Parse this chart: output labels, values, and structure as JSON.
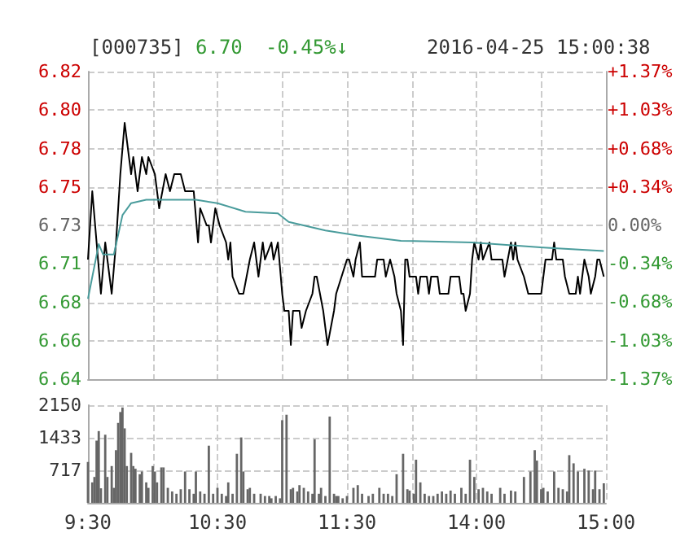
{
  "chart_data": [
    {
      "type": "line",
      "title": "[000735]",
      "annotations": [
        "6.70",
        "-0.45%↓",
        "2016-04-25 15:00:38"
      ],
      "categories": [
        null,
        null,
        null,
        null,
        null,
        null,
        null,
        null,
        null,
        null,
        null,
        null,
        null,
        null,
        null,
        null,
        null,
        null,
        null,
        null,
        null,
        null,
        null,
        null,
        null,
        null,
        null,
        null,
        null,
        null,
        null,
        null,
        null,
        null,
        null,
        null,
        null,
        null,
        null,
        null,
        null,
        null,
        null,
        null,
        null,
        null,
        null,
        null,
        null,
        null,
        null,
        null,
        null,
        null,
        null,
        null,
        null,
        null,
        null,
        null,
        null,
        null,
        null,
        null,
        null,
        null,
        null,
        null,
        null,
        null,
        null,
        null,
        null,
        null,
        null,
        null,
        null,
        null,
        null,
        null,
        null,
        null,
        null,
        null,
        null,
        null,
        null,
        null,
        null,
        null,
        null,
        null,
        null,
        null,
        null,
        null,
        null,
        null,
        null,
        null,
        null,
        null,
        null,
        null,
        null,
        null,
        null,
        null,
        null,
        null,
        null,
        null,
        null,
        null,
        null,
        null,
        null,
        null,
        null,
        null,
        null,
        null,
        null,
        null,
        null,
        null,
        null,
        null,
        null,
        null,
        null,
        null,
        null,
        null,
        null,
        null,
        null,
        null,
        null,
        null,
        null,
        null,
        null,
        null,
        null,
        null,
        null,
        null,
        null,
        null,
        null,
        null,
        null,
        null,
        null,
        null,
        null,
        null,
        null,
        null,
        null,
        null,
        null,
        null,
        null,
        null,
        null,
        null,
        null,
        null,
        null,
        null,
        null,
        null,
        null,
        null,
        null,
        null,
        null,
        null,
        null,
        null,
        null,
        null,
        null,
        null,
        null,
        null,
        null,
        null,
        null,
        null,
        null,
        null,
        null,
        null,
        null,
        null,
        null,
        null,
        null,
        null,
        null,
        null,
        null,
        null,
        null,
        null,
        null,
        null,
        null,
        null,
        null,
        null,
        null,
        null,
        null,
        null,
        null,
        null,
        null,
        null,
        null,
        null,
        null,
        null,
        null,
        null,
        null,
        null,
        null,
        null,
        null,
        null,
        null,
        null,
        null,
        null,
        null,
        null,
        null
      ],
      "ylim": [
        6.64,
        6.82
      ],
      "yticks": [
        {
          "value": 6.64,
          "label": "6.64"
        },
        {
          "value": 6.6625,
          "label": "6.66"
        },
        {
          "value": 6.685,
          "label": "6.68"
        },
        {
          "value": 6.7075,
          "label": "6.71"
        },
        {
          "value": 6.73,
          "label": "6.73"
        },
        {
          "value": 6.7525,
          "label": "6.75"
        },
        {
          "value": 6.775,
          "label": "6.78"
        },
        {
          "value": 6.7975,
          "label": "6.80"
        },
        {
          "value": 6.82,
          "label": "6.82"
        }
      ],
      "y2lim": [
        -1.37,
        1.37
      ],
      "y2ticks": [
        {
          "value": -1.37,
          "label": "-1.37%"
        },
        {
          "value": -1.03,
          "label": "-1.03%"
        },
        {
          "value": -0.68,
          "label": "-0.68%"
        },
        {
          "value": -0.34,
          "label": "-0.34%"
        },
        {
          "value": 0,
          "label": "0.00%"
        },
        {
          "value": 0.34,
          "label": "+0.34%"
        },
        {
          "value": 0.68,
          "label": "+0.68%"
        },
        {
          "value": 1.03,
          "label": "+1.03%"
        },
        {
          "value": 1.37,
          "label": "+1.37%"
        }
      ],
      "tick_labels": "y",
      "grid": true,
      "line_style": "solid",
      "series": [
        {
          "color": "#000000",
          "values": [
            6.71,
            null,
            6.75,
            null,
            null,
            null,
            6.69,
            null,
            6.72,
            null,
            null,
            6.69,
            null,
            6.72,
            null,
            6.76,
            null,
            6.79,
            null,
            null,
            6.76,
            6.77,
            null,
            6.75,
            null,
            6.77,
            null,
            6.76,
            6.77,
            null,
            null,
            6.76,
            null,
            6.74,
            null,
            null,
            6.76,
            null,
            6.75,
            null,
            6.76,
            null,
            null,
            6.76,
            null,
            6.75,
            null,
            null,
            null,
            6.75,
            null,
            6.72,
            6.74,
            null,
            null,
            6.73,
            6.73,
            6.72,
            null,
            6.74,
            null,
            6.73,
            null,
            null,
            6.72,
            6.71,
            6.72,
            6.7,
            null,
            null,
            6.69,
            null,
            6.69,
            null,
            null,
            6.71,
            null,
            6.72,
            null,
            6.7,
            null,
            6.72,
            6.71,
            null,
            null,
            6.72,
            6.71,
            null,
            6.72,
            null,
            6.69,
            6.68,
            null,
            6.68,
            6.66,
            6.68,
            null,
            null,
            6.68,
            6.67,
            null,
            6.68,
            null,
            null,
            6.69,
            6.7,
            6.7,
            null,
            null,
            6.68,
            null,
            6.66,
            null,
            null,
            6.68,
            6.69,
            null,
            null,
            null,
            null,
            6.71,
            6.71,
            null,
            6.7,
            6.71,
            null,
            6.72,
            6.7,
            null,
            null,
            null,
            null,
            null,
            6.7,
            6.71,
            6.71,
            null,
            6.71,
            6.7,
            null,
            6.71,
            null,
            6.7,
            6.69,
            null,
            6.68,
            6.66,
            6.71,
            6.71,
            6.7,
            null,
            null,
            6.7,
            6.69,
            6.7,
            null,
            null,
            6.7,
            6.69,
            6.7,
            null,
            null,
            6.7,
            6.69,
            null,
            null,
            null,
            6.69,
            6.7,
            null,
            null,
            null,
            6.7,
            6.69,
            6.69,
            6.68,
            null,
            6.69,
            6.71,
            6.72,
            null,
            6.71,
            6.72,
            6.71,
            null,
            null,
            6.72,
            6.71,
            null,
            6.71,
            null,
            null,
            6.71,
            6.7,
            null,
            null,
            6.72,
            6.71,
            6.72,
            6.71,
            null,
            null,
            6.7,
            null,
            6.69,
            null,
            null,
            null,
            null,
            null,
            6.69,
            6.7,
            6.71,
            null,
            null,
            6.71,
            6.72,
            6.71,
            null,
            null,
            6.71,
            6.7,
            null,
            6.69,
            null,
            null,
            6.69,
            6.7,
            6.69,
            null,
            6.71,
            null,
            6.7,
            6.69,
            null,
            6.7,
            6.71,
            6.71,
            null,
            6.7,
            null
          ]
        },
        {
          "color": "#4a9c9c",
          "values": [
            6.687,
            null,
            null,
            null,
            null,
            6.719,
            null,
            6.713,
            null,
            null,
            null,
            null,
            6.713,
            null,
            null,
            null,
            6.736,
            null,
            null,
            null,
            6.743,
            null,
            null,
            null,
            null,
            null,
            null,
            6.745,
            null,
            null,
            null,
            null,
            null,
            null,
            null,
            null,
            null,
            null,
            null,
            null,
            null,
            null,
            null,
            null,
            null,
            null,
            null,
            null,
            null,
            null,
            6.745,
            null,
            null,
            null,
            null,
            null,
            null,
            null,
            null,
            null,
            6.743,
            null,
            null,
            null,
            null,
            null,
            null,
            null,
            null,
            null,
            null,
            null,
            null,
            6.738,
            null,
            null,
            null,
            null,
            null,
            null,
            null,
            null,
            null,
            null,
            null,
            null,
            null,
            null,
            6.737,
            null,
            null,
            null,
            null,
            6.732,
            null,
            null,
            null,
            null,
            null,
            null,
            null,
            null,
            null,
            null,
            null,
            null,
            null,
            null,
            null,
            null,
            6.727,
            null,
            null,
            null,
            null,
            null,
            null,
            null,
            null,
            null,
            null,
            null,
            null,
            null,
            null,
            6.724,
            null,
            null,
            null,
            null,
            null,
            null,
            null,
            null,
            null,
            null,
            null,
            null,
            null,
            null,
            null,
            null,
            null,
            null,
            null,
            6.721,
            null,
            null,
            null,
            null,
            null,
            null,
            null,
            null,
            null,
            null,
            null,
            null,
            null,
            null,
            null,
            null,
            null,
            null,
            null,
            null,
            null,
            null,
            null,
            null,
            null,
            null,
            null,
            null,
            null,
            null,
            null,
            null,
            6.72,
            null,
            null,
            null,
            null,
            null,
            null,
            null,
            null,
            null,
            null,
            null,
            null,
            null,
            null,
            null,
            null,
            null,
            null,
            null,
            null,
            null,
            null,
            null,
            null,
            null,
            null,
            null,
            null,
            null,
            null,
            null,
            null,
            6.717,
            null,
            null,
            null,
            null,
            null,
            null,
            null,
            null,
            null,
            null,
            null,
            null,
            null,
            null,
            null,
            null,
            null,
            null,
            null,
            null,
            null,
            null,
            null,
            null,
            null,
            null,
            null,
            6.715,
            null
          ]
        }
      ]
    },
    {
      "type": "bar",
      "categories": [
        "9:30",
        null,
        null,
        null,
        null,
        null,
        null,
        null,
        null,
        null,
        null,
        null,
        null,
        null,
        null,
        null,
        null,
        null,
        null,
        null,
        null,
        null,
        null,
        null,
        null,
        null,
        null,
        null,
        null,
        null,
        null,
        null,
        null,
        null,
        null,
        null,
        null,
        null,
        null,
        null,
        null,
        null,
        null,
        null,
        null,
        null,
        null,
        null,
        null,
        null,
        null,
        null,
        null,
        null,
        null,
        null,
        null,
        null,
        null,
        null,
        "10:30",
        null,
        null,
        null,
        null,
        null,
        null,
        null,
        null,
        null,
        null,
        null,
        null,
        null,
        null,
        null,
        null,
        null,
        null,
        null,
        null,
        null,
        null,
        null,
        null,
        null,
        null,
        null,
        null,
        null,
        null,
        null,
        null,
        null,
        null,
        null,
        null,
        null,
        null,
        null,
        null,
        null,
        null,
        null,
        null,
        null,
        null,
        null,
        null,
        null,
        null,
        null,
        null,
        null,
        null,
        null,
        null,
        null,
        null,
        null,
        "11:30",
        null,
        null,
        null,
        null,
        null,
        null,
        null,
        null,
        null,
        null,
        null,
        null,
        null,
        null,
        null,
        null,
        null,
        null,
        null,
        null,
        null,
        null,
        null,
        null,
        null,
        null,
        null,
        null,
        null,
        null,
        null,
        null,
        null,
        null,
        null,
        null,
        null,
        null,
        null,
        null,
        null,
        null,
        null,
        null,
        null,
        null,
        null,
        null,
        null,
        null,
        null,
        null,
        null,
        null,
        null,
        null,
        null,
        null,
        null,
        "14:00",
        null,
        null,
        null,
        null,
        null,
        null,
        null,
        null,
        null,
        null,
        null,
        null,
        null,
        null,
        null,
        null,
        null,
        null,
        null,
        null,
        null,
        null,
        null,
        null,
        null,
        null,
        null,
        null,
        null,
        null,
        null,
        null,
        null,
        null,
        null,
        null,
        null,
        null,
        null,
        null,
        null,
        null,
        null,
        null,
        null,
        null,
        null,
        null,
        null,
        null,
        null,
        null,
        null,
        null,
        null,
        null,
        null,
        null,
        null,
        "15:00"
      ],
      "ylim": [
        0,
        2150
      ],
      "yticks": [
        {
          "value": 0,
          "label": null
        },
        {
          "value": 717,
          "label": "717"
        },
        {
          "value": 1433,
          "label": "1433"
        },
        {
          "value": 2150,
          "label": "2150"
        }
      ],
      "grid": true,
      "series": [
        {
          "color": "#666666",
          "values": [
            900,
            null,
            450,
            570,
            1370,
            1580,
            320,
            null,
            1500,
            570,
            null,
            810,
            330,
            1160,
            1760,
            2000,
            2100,
            1640,
            810,
            null,
            1100,
            810,
            750,
            null,
            630,
            690,
            null,
            450,
            330,
            null,
            810,
            690,
            450,
            null,
            780,
            780,
            null,
            330,
            null,
            250,
            null,
            200,
            null,
            300,
            null,
            690,
            null,
            300,
            null,
            200,
            690,
            null,
            250,
            null,
            200,
            null,
            1260,
            null,
            200,
            null,
            330,
            null,
            200,
            null,
            150,
            450,
            null,
            200,
            null,
            1080,
            null,
            1440,
            690,
            null,
            300,
            330,
            null,
            200,
            null,
            null,
            200,
            null,
            150,
            null,
            150,
            100,
            null,
            150,
            null,
            100,
            1820,
            null,
            1940,
            null,
            300,
            330,
            null,
            250,
            390,
            null,
            330,
            null,
            250,
            null,
            200,
            1400,
            null,
            200,
            330,
            null,
            150,
            null,
            1900,
            null,
            200,
            150,
            150,
            null,
            100,
            null,
            150,
            null,
            null,
            330,
            null,
            390,
            null,
            200,
            null,
            null,
            150,
            null,
            200,
            null,
            null,
            330,
            null,
            200,
            null,
            200,
            null,
            150,
            null,
            630,
            null,
            null,
            1080,
            null,
            300,
            270,
            null,
            200,
            950,
            null,
            450,
            null,
            200,
            null,
            150,
            null,
            150,
            null,
            200,
            null,
            250,
            null,
            200,
            null,
            270,
            null,
            200,
            null,
            null,
            330,
            null,
            200,
            null,
            950,
            null,
            570,
            null,
            300,
            null,
            330,
            null,
            250,
            null,
            200,
            null,
            null,
            null,
            330,
            null,
            200,
            null,
            null,
            270,
            null,
            250,
            null,
            null,
            null,
            570,
            null,
            null,
            690,
            null,
            1160,
            930,
            null,
            300,
            330,
            null,
            250,
            null,
            null,
            690,
            null,
            330,
            null,
            300,
            null,
            250,
            1050,
            null,
            870,
            null,
            690,
            null,
            null,
            750,
            null,
            710,
            null,
            300,
            710,
            null,
            300,
            null,
            430,
            null
          ]
        }
      ]
    }
  ]
}
